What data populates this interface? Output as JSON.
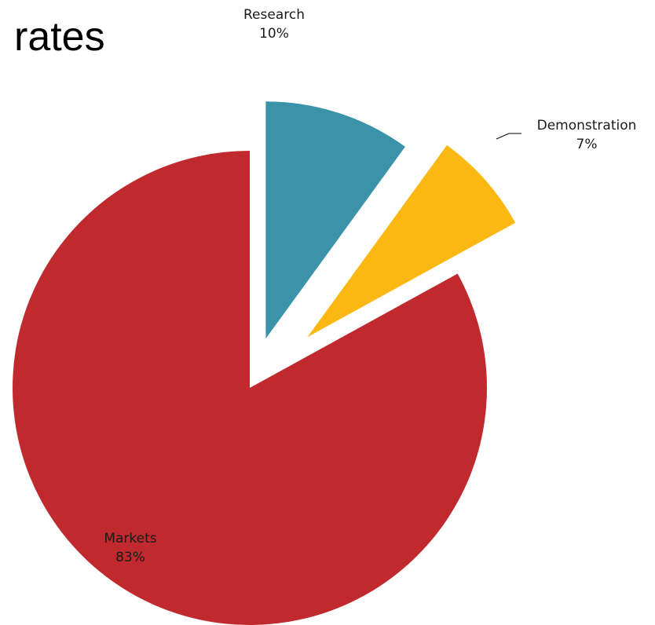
{
  "title": "rates",
  "chart_data": {
    "type": "pie",
    "title": "rates",
    "start_angle_deg": 0,
    "direction": "clockwise",
    "exploded": true,
    "slices": [
      {
        "name": "Research",
        "value": 10,
        "label": "10%",
        "color": "#3a93a8"
      },
      {
        "name": "Demonstration",
        "value": 7,
        "label": "7%",
        "color": "#fbb812"
      },
      {
        "name": "Markets",
        "value": 83,
        "label": "83%",
        "color": "#c0292e"
      }
    ]
  }
}
